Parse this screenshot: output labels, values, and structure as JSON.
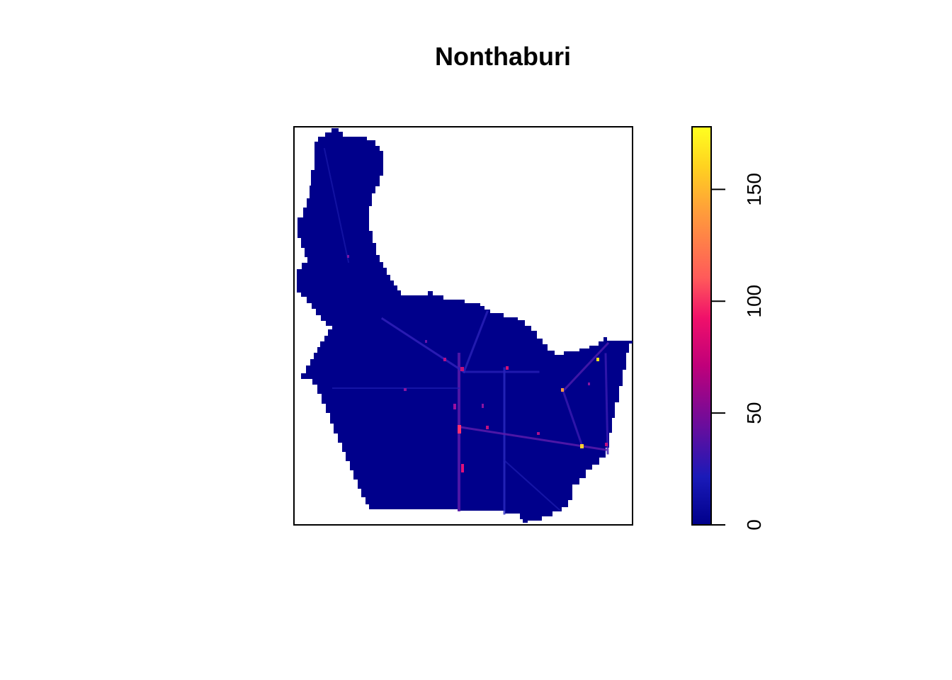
{
  "title": "Nonthaburi",
  "map": {
    "region": "Nonthaburi",
    "fill_base_color": "#00008B",
    "background": "#ffffff",
    "hotspots": [
      {
        "value": 175,
        "location": "east"
      },
      {
        "value": 160,
        "location": "southeast"
      },
      {
        "value": 110,
        "location": "central-south"
      },
      {
        "value": 95,
        "location": "central-south"
      },
      {
        "value": 85,
        "location": "east-central"
      },
      {
        "value": 70,
        "location": "central"
      }
    ]
  },
  "legend": {
    "ticks": [
      "0",
      "50",
      "100",
      "150"
    ],
    "tick_values": [
      0,
      50,
      100,
      150
    ],
    "range": [
      0,
      178
    ],
    "gradient_stops": [
      "#00008B",
      "#1A1AB8",
      "#6A0D9C",
      "#C0007A",
      "#F0106A",
      "#FF5A5A",
      "#FF9A3C",
      "#FFD220",
      "#FFFF20"
    ]
  }
}
